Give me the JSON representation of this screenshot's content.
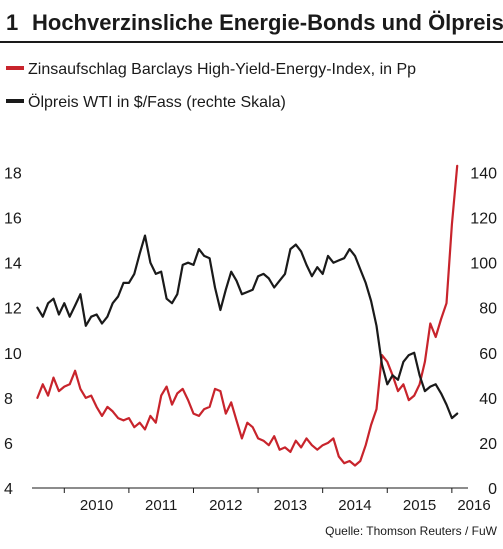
{
  "chart_number": "1",
  "chart_data": {
    "type": "line",
    "title": "Hochverzinsliche Energie-Bonds und Ölpreis",
    "legend_placement": "top-left",
    "grid": false,
    "x_ticks": [
      "2010",
      "2011",
      "2012",
      "2013",
      "2014",
      "2015",
      "2016"
    ],
    "xlim": [
      "2009-07",
      "2016-04"
    ],
    "y_left": {
      "ticks": [
        "4",
        "6",
        "8",
        "10",
        "12",
        "14",
        "16",
        "18"
      ],
      "ylim": [
        4,
        19
      ]
    },
    "y_right": {
      "ticks": [
        "0",
        "20",
        "40",
        "60",
        "80",
        "100",
        "120",
        "140"
      ],
      "ylim": [
        0,
        150
      ]
    },
    "series": [
      {
        "name": "Zinsaufschlag Barclays High-Yield-Energy-Index, in Pp",
        "axis": "left",
        "color": "#c8242c",
        "x": [
          "2009-08",
          "2009-09",
          "2009-10",
          "2009-11",
          "2009-12",
          "2010-01",
          "2010-02",
          "2010-03",
          "2010-04",
          "2010-05",
          "2010-06",
          "2010-07",
          "2010-08",
          "2010-09",
          "2010-10",
          "2010-11",
          "2010-12",
          "2011-01",
          "2011-02",
          "2011-03",
          "2011-04",
          "2011-05",
          "2011-06",
          "2011-07",
          "2011-08",
          "2011-09",
          "2011-10",
          "2011-11",
          "2011-12",
          "2012-01",
          "2012-02",
          "2012-03",
          "2012-04",
          "2012-05",
          "2012-06",
          "2012-07",
          "2012-08",
          "2012-09",
          "2012-10",
          "2012-11",
          "2012-12",
          "2013-01",
          "2013-02",
          "2013-03",
          "2013-04",
          "2013-05",
          "2013-06",
          "2013-07",
          "2013-08",
          "2013-09",
          "2013-10",
          "2013-11",
          "2013-12",
          "2014-01",
          "2014-02",
          "2014-03",
          "2014-04",
          "2014-05",
          "2014-06",
          "2014-07",
          "2014-08",
          "2014-09",
          "2014-10",
          "2014-11",
          "2014-12",
          "2015-01",
          "2015-02",
          "2015-03",
          "2015-04",
          "2015-05",
          "2015-06",
          "2015-07",
          "2015-08",
          "2015-09",
          "2015-10",
          "2015-11",
          "2015-12",
          "2016-01",
          "2016-02"
        ],
        "values": [
          8.0,
          8.6,
          8.1,
          8.9,
          8.3,
          8.5,
          8.6,
          9.2,
          8.4,
          8.0,
          8.1,
          7.6,
          7.2,
          7.6,
          7.4,
          7.1,
          7.0,
          7.1,
          6.7,
          6.9,
          6.6,
          7.2,
          6.9,
          8.1,
          8.5,
          7.7,
          8.2,
          8.4,
          7.9,
          7.3,
          7.2,
          7.5,
          7.6,
          8.4,
          8.3,
          7.3,
          7.8,
          7.0,
          6.2,
          6.9,
          6.7,
          6.2,
          6.1,
          5.9,
          6.3,
          5.7,
          5.8,
          5.6,
          6.1,
          5.8,
          6.2,
          5.9,
          5.7,
          5.9,
          6.0,
          6.2,
          5.4,
          5.1,
          5.2,
          5.0,
          5.2,
          5.9,
          6.8,
          7.5,
          9.9,
          9.6,
          9.0,
          8.3,
          8.6,
          7.9,
          8.1,
          8.6,
          9.6,
          11.3,
          10.7,
          11.5,
          12.2,
          15.7,
          18.3
        ]
      },
      {
        "name": "Ölpreis WTI in $/Fass (rechte Skala)",
        "axis": "right",
        "color": "#1a1a1a",
        "x": [
          "2009-08",
          "2009-09",
          "2009-10",
          "2009-11",
          "2009-12",
          "2010-01",
          "2010-02",
          "2010-03",
          "2010-04",
          "2010-05",
          "2010-06",
          "2010-07",
          "2010-08",
          "2010-09",
          "2010-10",
          "2010-11",
          "2010-12",
          "2011-01",
          "2011-02",
          "2011-03",
          "2011-04",
          "2011-05",
          "2011-06",
          "2011-07",
          "2011-08",
          "2011-09",
          "2011-10",
          "2011-11",
          "2011-12",
          "2012-01",
          "2012-02",
          "2012-03",
          "2012-04",
          "2012-05",
          "2012-06",
          "2012-07",
          "2012-08",
          "2012-09",
          "2012-10",
          "2012-11",
          "2012-12",
          "2013-01",
          "2013-02",
          "2013-03",
          "2013-04",
          "2013-05",
          "2013-06",
          "2013-07",
          "2013-08",
          "2013-09",
          "2013-10",
          "2013-11",
          "2013-12",
          "2014-01",
          "2014-02",
          "2014-03",
          "2014-04",
          "2014-05",
          "2014-06",
          "2014-07",
          "2014-08",
          "2014-09",
          "2014-10",
          "2014-11",
          "2014-12",
          "2015-01",
          "2015-02",
          "2015-03",
          "2015-04",
          "2015-05",
          "2015-06",
          "2015-07",
          "2015-08",
          "2015-09",
          "2015-10",
          "2015-11",
          "2015-12",
          "2016-01",
          "2016-02"
        ],
        "values": [
          80,
          76,
          82,
          84,
          77,
          82,
          76,
          81,
          86,
          72,
          76,
          77,
          73,
          76,
          82,
          85,
          91,
          91,
          95,
          104,
          112,
          100,
          95,
          96,
          84,
          82,
          86,
          99,
          100,
          99,
          106,
          103,
          102,
          89,
          79,
          88,
          96,
          92,
          86,
          87,
          88,
          94,
          95,
          93,
          89,
          92,
          95,
          106,
          108,
          105,
          99,
          94,
          98,
          95,
          103,
          100,
          101,
          102,
          106,
          103,
          97,
          91,
          83,
          72,
          55,
          46,
          50,
          48,
          56,
          59,
          60,
          50,
          43,
          45,
          46,
          42,
          37,
          31,
          33
        ]
      }
    ]
  },
  "source": "Quelle: Thomson Reuters / FuW"
}
